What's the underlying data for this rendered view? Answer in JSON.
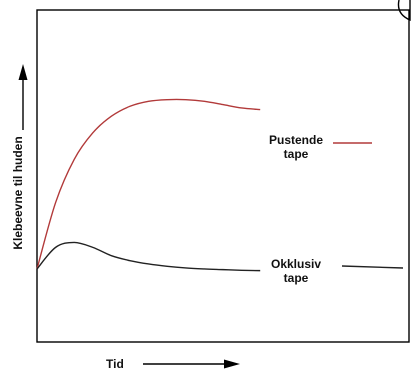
{
  "chart_data": {
    "type": "line",
    "title": "",
    "xlabel": "Tid",
    "ylabel": "Klebeevne til huden",
    "xlim": [
      0,
      10
    ],
    "ylim": [
      0,
      10
    ],
    "grid": false,
    "series": [
      {
        "name": "Pustende tape",
        "label_lines": [
          "Pustende",
          "tape"
        ],
        "color": "#b23a3a",
        "x": [
          0,
          0.5,
          1.0,
          1.5,
          2.0,
          2.5,
          3.0,
          3.5,
          4.0,
          4.5,
          5.0,
          5.5,
          6.0
        ],
        "y": [
          2.2,
          4.2,
          5.5,
          6.3,
          6.8,
          7.1,
          7.25,
          7.3,
          7.3,
          7.25,
          7.15,
          7.05,
          7.0
        ]
      },
      {
        "name": "Okklusiv tape",
        "label_lines": [
          "Okklusiv",
          "tape"
        ],
        "color": "#222222",
        "x": [
          0,
          0.5,
          1.0,
          1.5,
          2.0,
          2.5,
          3.0,
          3.5,
          4.0,
          4.5,
          5.0,
          5.5,
          6.0
        ],
        "y": [
          2.2,
          2.85,
          3.0,
          2.85,
          2.6,
          2.45,
          2.35,
          2.28,
          2.23,
          2.2,
          2.18,
          2.16,
          2.15
        ]
      }
    ]
  },
  "colors": {
    "axis": "#111111",
    "frame": "#000000"
  }
}
